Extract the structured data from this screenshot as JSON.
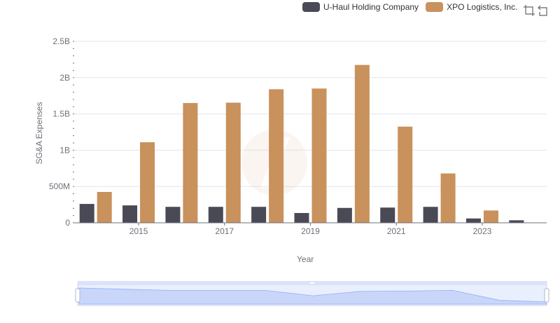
{
  "legend": {
    "series_a": "U-Haul Holding Company",
    "series_b": "XPO Logistics, Inc."
  },
  "toolbox": {
    "zoom_icon": "zoom-icon",
    "restore_icon": "restore-icon"
  },
  "colors": {
    "series_a": "#4a4a57",
    "series_b": "#c9915c",
    "grid": "#e0e6f1",
    "axis": "#6e7079",
    "slider": "#d7e0fb"
  },
  "chart_data": {
    "type": "bar",
    "xlabel": "Year",
    "ylabel": "SG&A Expenses",
    "ylim": [
      0,
      2500000000
    ],
    "y_ticks": [
      0,
      500000000,
      1000000000,
      1500000000,
      2000000000,
      2500000000
    ],
    "y_tick_labels": [
      "0",
      "500M",
      "1B",
      "1.5B",
      "2B",
      "2.5B"
    ],
    "categories": [
      "2014",
      "2015",
      "2016",
      "2017",
      "2018",
      "2019",
      "2020",
      "2021",
      "2022",
      "2023",
      "2024"
    ],
    "x_tick_labels": [
      "2015",
      "2017",
      "2019",
      "2021",
      "2023"
    ],
    "series": [
      {
        "name": "U-Haul Holding Company",
        "values": [
          260000000,
          240000000,
          220000000,
          220000000,
          220000000,
          135000000,
          205000000,
          210000000,
          220000000,
          60000000,
          35000000
        ]
      },
      {
        "name": "XPO Logistics, Inc.",
        "values": [
          425000000,
          1110000000,
          1650000000,
          1655000000,
          1840000000,
          1850000000,
          2175000000,
          1325000000,
          680000000,
          170000000,
          null
        ]
      }
    ],
    "grid": true,
    "legend_position": "top-right"
  }
}
